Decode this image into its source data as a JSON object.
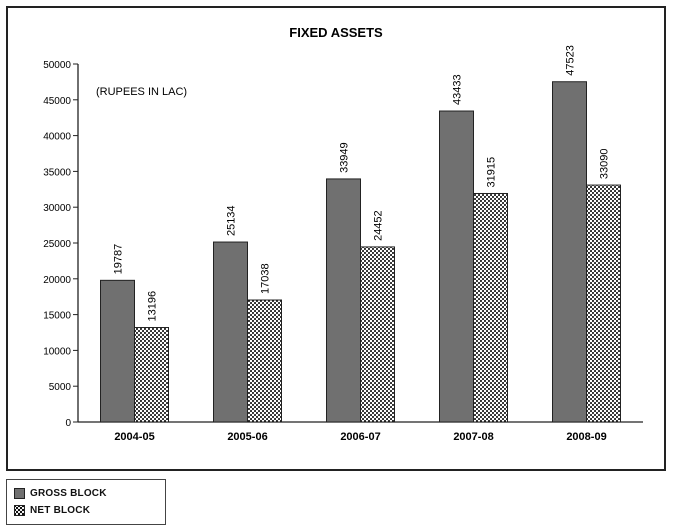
{
  "chart_data": {
    "type": "bar",
    "title": "FIXED ASSETS",
    "subtitle": "(RUPEES IN LAC)",
    "categories": [
      "2004-05",
      "2005-06",
      "2006-07",
      "2007-08",
      "2008-09"
    ],
    "series": [
      {
        "name": "GROSS BLOCK",
        "values": [
          19787,
          25134,
          33949,
          43433,
          47523
        ],
        "labels": [
          "19787",
          "25134",
          "33949",
          "43433",
          "47523"
        ],
        "color": "#707070"
      },
      {
        "name": "NET BLOCK",
        "values": [
          13196,
          17038,
          24452,
          31915,
          33090
        ],
        "labels": [
          "13196",
          "17038",
          "24452",
          "31915",
          "33090"
        ],
        "color": "#ffffff"
      }
    ],
    "ylim": [
      0,
      50000
    ],
    "yticks": [
      0,
      5000,
      10000,
      15000,
      20000,
      25000,
      30000,
      35000,
      40000,
      45000,
      50000
    ],
    "ytick_labels": [
      "0",
      "5000",
      "10000",
      "15000",
      "20000",
      "25000",
      "30000",
      "35000",
      "40000",
      "45000",
      "50000"
    ],
    "grid": false,
    "legend": "below-left"
  }
}
